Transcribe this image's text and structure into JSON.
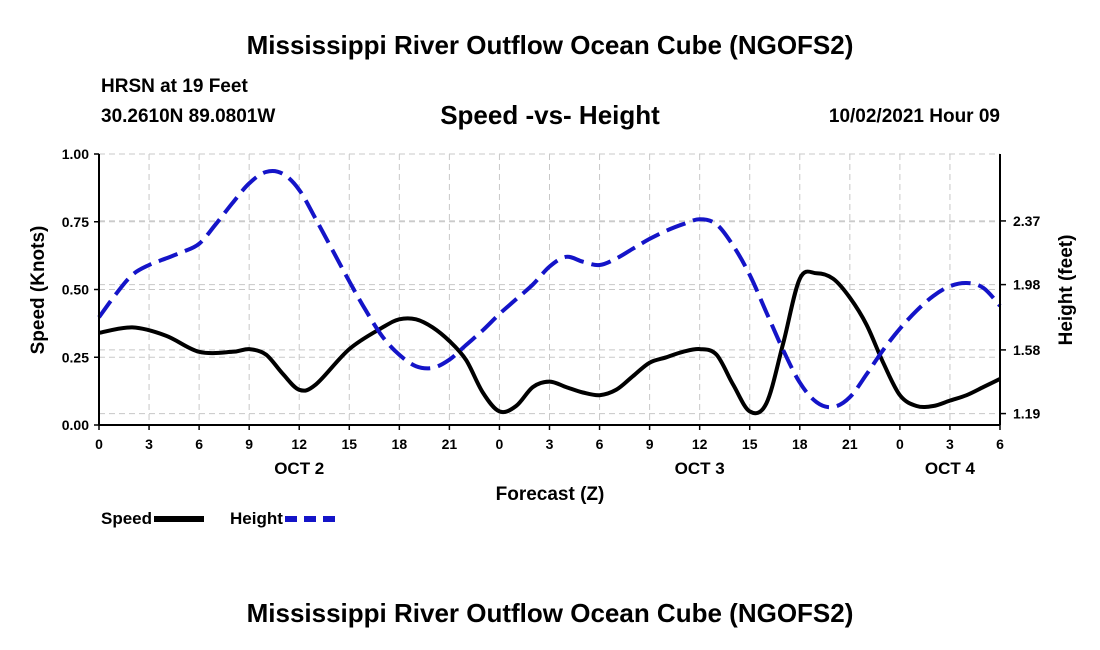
{
  "header": {
    "title": "Mississippi River Outflow Ocean Cube (NGOFS2)",
    "station": "HRSN at 19 Feet",
    "coords": "30.2610N  89.0801W",
    "subtitle": "Speed -vs- Height",
    "datetime": "10/02/2021 Hour 09"
  },
  "footer": {
    "title": "Mississippi River Outflow Ocean Cube (NGOFS2)"
  },
  "legend": {
    "speed": "Speed",
    "height": "Height"
  },
  "chart_data": {
    "type": "line",
    "title": "Speed -vs- Height",
    "xlabel": "Forecast (Z)",
    "ylabel": "Speed (Knots)",
    "y2label": "Height (feet)",
    "xlim": [
      0,
      54
    ],
    "ylim": [
      0,
      1.0
    ],
    "y2lim": [
      1.12,
      2.78
    ],
    "x_ticks": [
      0,
      3,
      6,
      9,
      12,
      15,
      18,
      21,
      24,
      27,
      30,
      33,
      36,
      39,
      42,
      45,
      48,
      51,
      54
    ],
    "x_tick_labels": [
      "0",
      "3",
      "6",
      "9",
      "12",
      "15",
      "18",
      "21",
      "0",
      "3",
      "6",
      "9",
      "12",
      "15",
      "18",
      "21",
      "0",
      "3",
      "6"
    ],
    "date_labels": [
      {
        "x": 12,
        "label": "OCT 2"
      },
      {
        "x": 36,
        "label": "OCT 3"
      },
      {
        "x": 51,
        "label": "OCT 4"
      }
    ],
    "y_ticks": [
      0.0,
      0.25,
      0.5,
      0.75,
      1.0
    ],
    "y_tick_labels": [
      "0.00",
      "0.25",
      "0.50",
      "0.75",
      "1.00"
    ],
    "y2_ticks": [
      1.19,
      1.58,
      1.98,
      2.37
    ],
    "y2_tick_labels": [
      "1.19",
      "1.58",
      "1.98",
      "2.37"
    ],
    "grid": true,
    "series": [
      {
        "name": "Speed",
        "axis": "left",
        "color": "#000000",
        "style": "solid",
        "x": [
          0,
          2,
          4,
          6,
          8,
          9,
          10,
          11,
          12,
          13,
          15,
          17,
          18,
          19,
          20,
          21,
          22,
          23,
          24,
          25,
          26,
          27,
          28,
          29,
          30,
          31,
          32,
          33,
          34,
          35,
          36,
          37,
          38,
          39,
          40,
          41,
          42,
          43,
          44,
          45,
          46,
          47,
          48,
          49,
          50,
          51,
          52,
          53,
          54
        ],
        "values": [
          0.34,
          0.36,
          0.33,
          0.27,
          0.27,
          0.28,
          0.26,
          0.19,
          0.13,
          0.15,
          0.28,
          0.36,
          0.39,
          0.39,
          0.36,
          0.31,
          0.24,
          0.12,
          0.05,
          0.07,
          0.14,
          0.16,
          0.14,
          0.12,
          0.11,
          0.13,
          0.18,
          0.23,
          0.25,
          0.27,
          0.28,
          0.26,
          0.15,
          0.05,
          0.08,
          0.3,
          0.54,
          0.56,
          0.54,
          0.47,
          0.37,
          0.23,
          0.11,
          0.07,
          0.07,
          0.09,
          0.11,
          0.14,
          0.17
        ]
      },
      {
        "name": "Height",
        "axis": "right",
        "color": "#1414c8",
        "style": "dashed",
        "x": [
          0,
          1,
          2,
          3,
          4,
          5,
          6,
          7,
          8,
          9,
          10,
          11,
          12,
          13,
          14,
          15,
          16,
          17,
          18,
          19,
          20,
          21,
          22,
          23,
          24,
          25,
          26,
          27,
          28,
          29,
          30,
          31,
          32,
          33,
          34,
          35,
          36,
          37,
          38,
          39,
          40,
          41,
          42,
          43,
          44,
          45,
          46,
          47,
          48,
          49,
          50,
          51,
          52,
          53,
          54
        ],
        "values": [
          1.78,
          1.92,
          2.04,
          2.1,
          2.14,
          2.18,
          2.23,
          2.35,
          2.48,
          2.6,
          2.67,
          2.66,
          2.56,
          2.38,
          2.19,
          2.0,
          1.82,
          1.66,
          1.55,
          1.48,
          1.47,
          1.52,
          1.61,
          1.7,
          1.8,
          1.89,
          1.98,
          2.09,
          2.15,
          2.12,
          2.1,
          2.14,
          2.2,
          2.26,
          2.31,
          2.35,
          2.38,
          2.35,
          2.22,
          2.04,
          1.81,
          1.58,
          1.38,
          1.26,
          1.23,
          1.29,
          1.43,
          1.58,
          1.71,
          1.82,
          1.91,
          1.97,
          1.99,
          1.96,
          1.85
        ]
      }
    ]
  }
}
